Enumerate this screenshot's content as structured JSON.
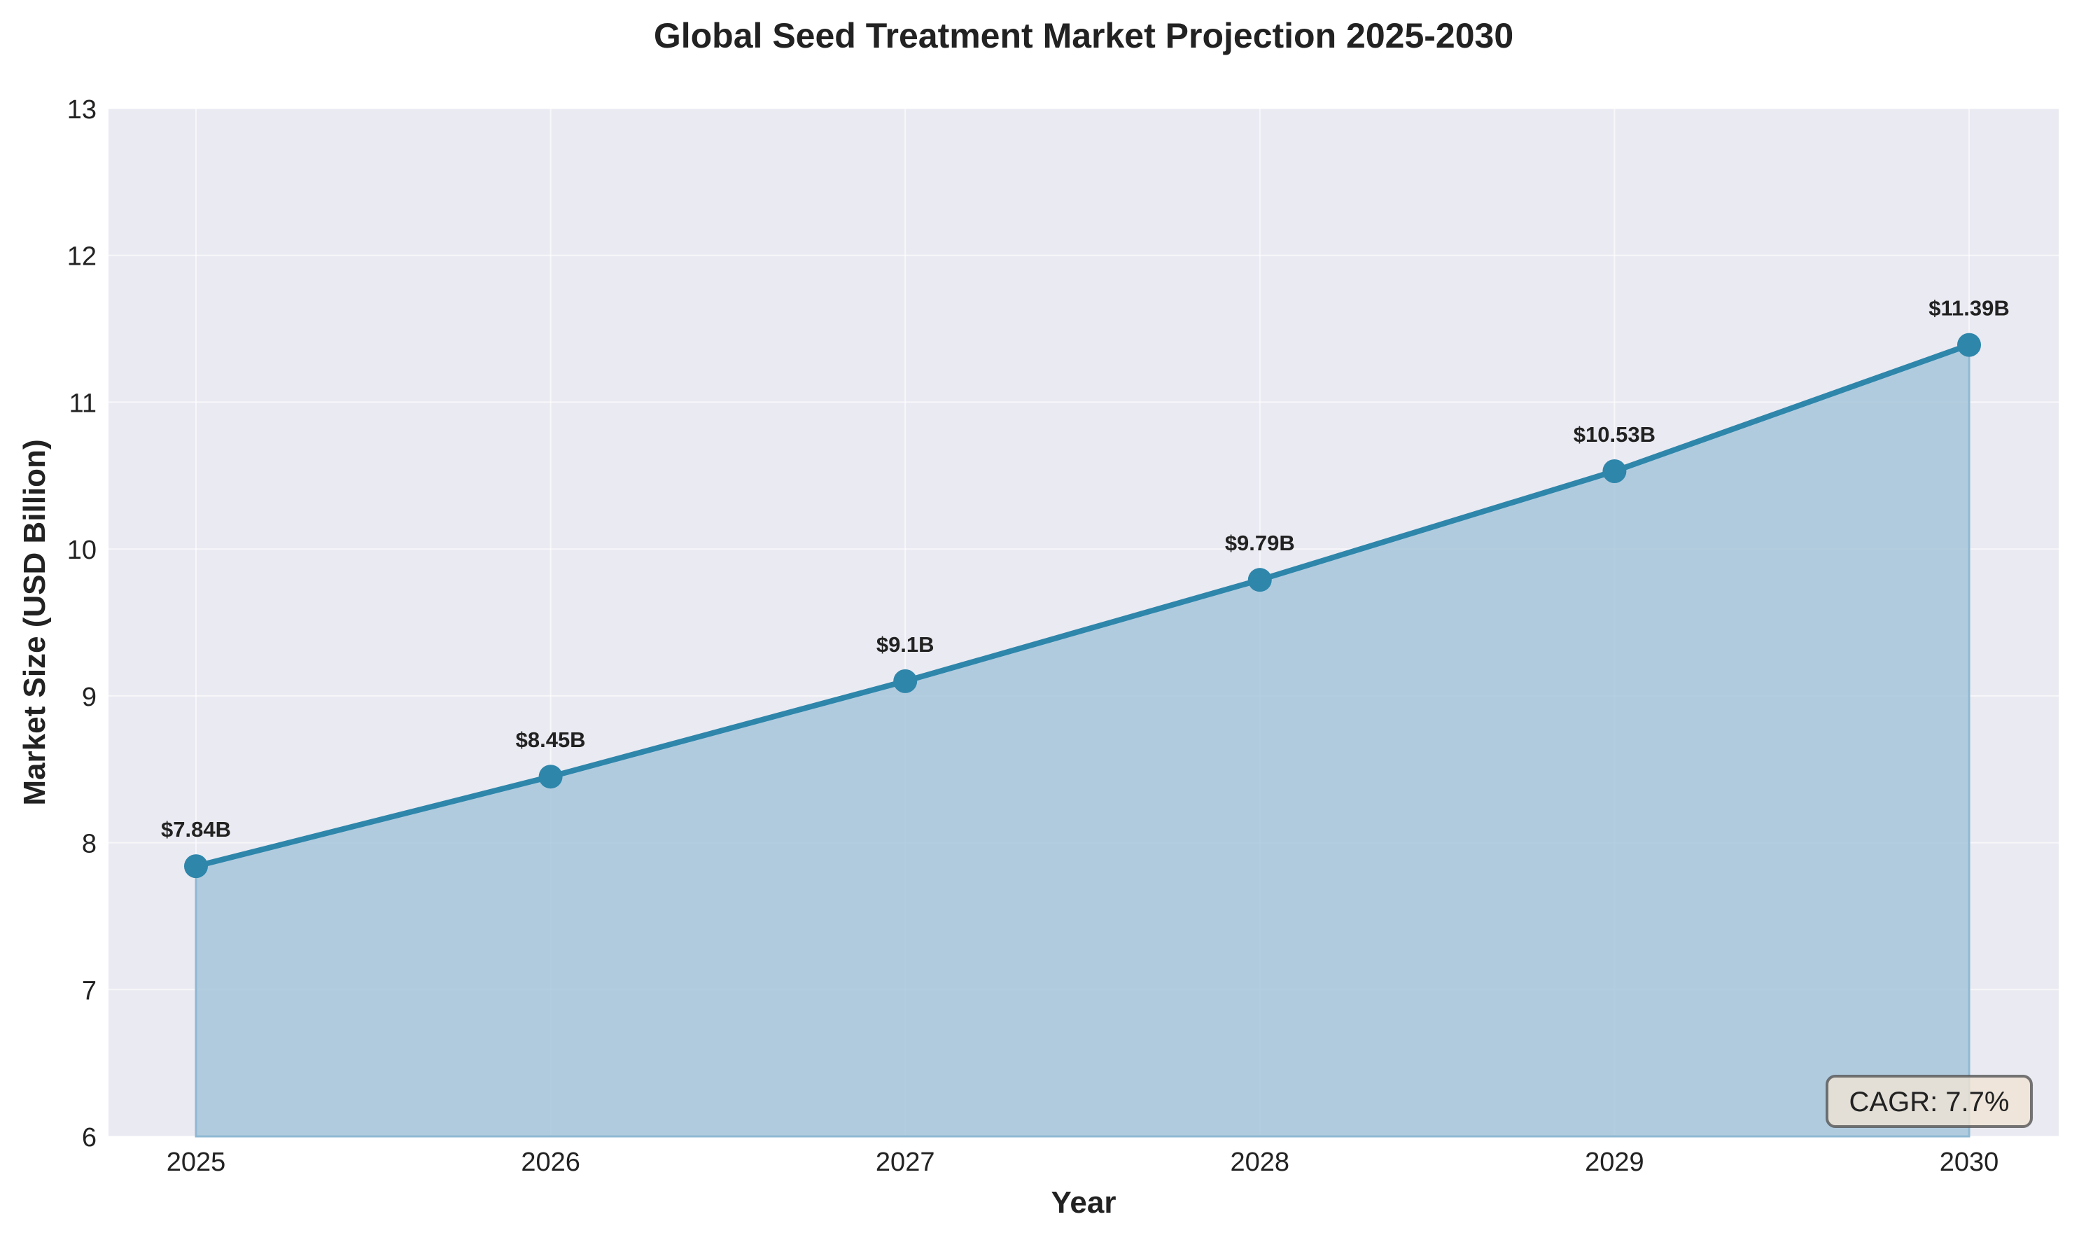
{
  "chart_data": {
    "type": "area",
    "title": "Global Seed Treatment Market Projection 2025-2030",
    "xlabel": "Year",
    "ylabel": "Market Size (USD Billion)",
    "categories": [
      "2025",
      "2026",
      "2027",
      "2028",
      "2029",
      "2030"
    ],
    "values": [
      7.84,
      8.45,
      9.1,
      9.79,
      10.53,
      11.39
    ],
    "data_labels": [
      "$7.84B",
      "$8.45B",
      "$9.1B",
      "$9.79B",
      "$10.53B",
      "$11.39B"
    ],
    "ylim": [
      6,
      13
    ],
    "yticks": [
      6,
      7,
      8,
      9,
      10,
      11,
      12,
      13
    ],
    "grid": true,
    "annotation": "CAGR: 7.7%",
    "colors": {
      "line": "#2E86AB",
      "fill": "#A7C6DA",
      "background": "#EAEAF2",
      "annotation_bg": "#F0E4D3"
    }
  }
}
